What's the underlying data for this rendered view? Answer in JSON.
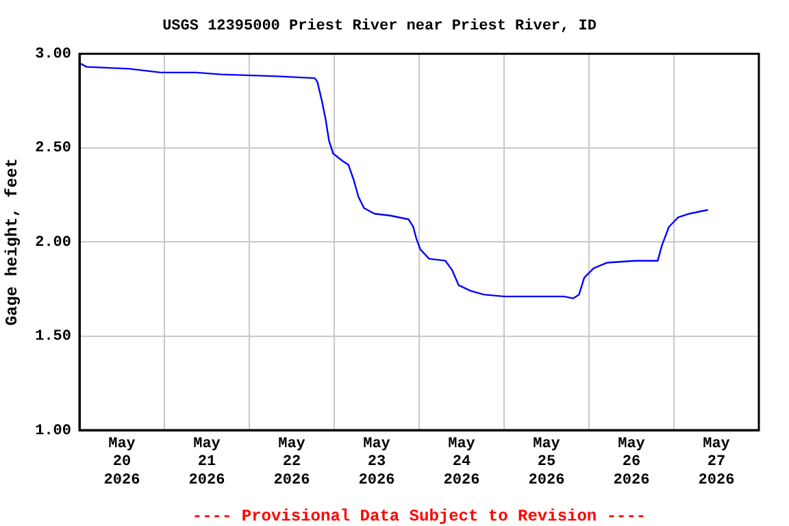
{
  "chart_data": {
    "type": "line",
    "title": "USGS 12395000 Priest River near Priest River, ID",
    "ylabel": "Gage height, feet",
    "annotations": [
      "---- Provisional Data Subject to Revision ----"
    ],
    "x": [
      "2026-05-20T00:00",
      "2026-05-20T02:00",
      "2026-05-20T14:00",
      "2026-05-20T23:00",
      "2026-05-21T09:00",
      "2026-05-21T16:00",
      "2026-05-22T08:00",
      "2026-05-22T18:30",
      "2026-05-22T19:15",
      "2026-05-22T20:30",
      "2026-05-22T21:35",
      "2026-05-22T22:30",
      "2026-05-22T23:40",
      "2026-05-23T02:20",
      "2026-05-23T04:00",
      "2026-05-23T05:30",
      "2026-05-23T06:50",
      "2026-05-23T08:25",
      "2026-05-23T11:20",
      "2026-05-23T15:50",
      "2026-05-23T21:00",
      "2026-05-23T22:20",
      "2026-05-23T23:10",
      "2026-05-24T00:20",
      "2026-05-24T02:50",
      "2026-05-24T07:25",
      "2026-05-24T09:20",
      "2026-05-24T11:10",
      "2026-05-24T14:30",
      "2026-05-24T18:20",
      "2026-05-25T00:00",
      "2026-05-25T16:55",
      "2026-05-25T19:30",
      "2026-05-25T21:10",
      "2026-05-25T22:40",
      "2026-05-26T01:20",
      "2026-05-26T05:10",
      "2026-05-26T13:00",
      "2026-05-26T19:25",
      "2026-05-26T20:35",
      "2026-05-26T22:35",
      "2026-05-27T01:10",
      "2026-05-27T04:25",
      "2026-05-27T09:35"
    ],
    "series": [
      {
        "color": "#0000ff",
        "values": [
          2.95,
          2.93,
          2.92,
          2.9,
          2.9,
          2.89,
          2.88,
          2.87,
          2.85,
          2.75,
          2.65,
          2.54,
          2.47,
          2.43,
          2.41,
          2.33,
          2.24,
          2.18,
          2.15,
          2.14,
          2.12,
          2.08,
          2.02,
          1.96,
          1.91,
          1.9,
          1.85,
          1.77,
          1.74,
          1.72,
          1.71,
          1.71,
          1.7,
          1.72,
          1.81,
          1.86,
          1.89,
          1.9,
          1.9,
          1.98,
          2.08,
          2.13,
          2.15,
          2.17
        ]
      }
    ],
    "xlim": [
      "2026-05-20T00:00",
      "2026-05-28T00:00"
    ],
    "xticks": [
      {
        "value": "2026-05-20T12:00",
        "label": "May\n20\n2026"
      },
      {
        "value": "2026-05-21T00:00",
        "label": null
      },
      {
        "value": "2026-05-21T12:00",
        "label": "May\n21\n2026"
      },
      {
        "value": "2026-05-22T00:00",
        "label": null
      },
      {
        "value": "2026-05-22T12:00",
        "label": "May\n22\n2026"
      },
      {
        "value": "2026-05-23T00:00",
        "label": null
      },
      {
        "value": "2026-05-23T12:00",
        "label": "May\n23\n2026"
      },
      {
        "value": "2026-05-24T00:00",
        "label": null
      },
      {
        "value": "2026-05-24T12:00",
        "label": "May\n24\n2026"
      },
      {
        "value": "2026-05-25T00:00",
        "label": null
      },
      {
        "value": "2026-05-25T12:00",
        "label": "May\n25\n2026"
      },
      {
        "value": "2026-05-26T00:00",
        "label": null
      },
      {
        "value": "2026-05-26T12:00",
        "label": "May\n26\n2026"
      },
      {
        "value": "2026-05-27T00:00",
        "label": null
      },
      {
        "value": "2026-05-27T12:00",
        "label": "May\n27\n2026"
      }
    ],
    "ylim": [
      1,
      3
    ],
    "yticks": [
      {
        "value": 1,
        "label": "1.00"
      },
      {
        "value": 1.5,
        "label": "1.50"
      },
      {
        "value": 2,
        "label": "2.00"
      },
      {
        "value": 2.5,
        "label": "2.50"
      },
      {
        "value": 3,
        "label": "3.00"
      }
    ],
    "grid": true,
    "legend": false,
    "marker": "none",
    "line_style": "solid"
  }
}
